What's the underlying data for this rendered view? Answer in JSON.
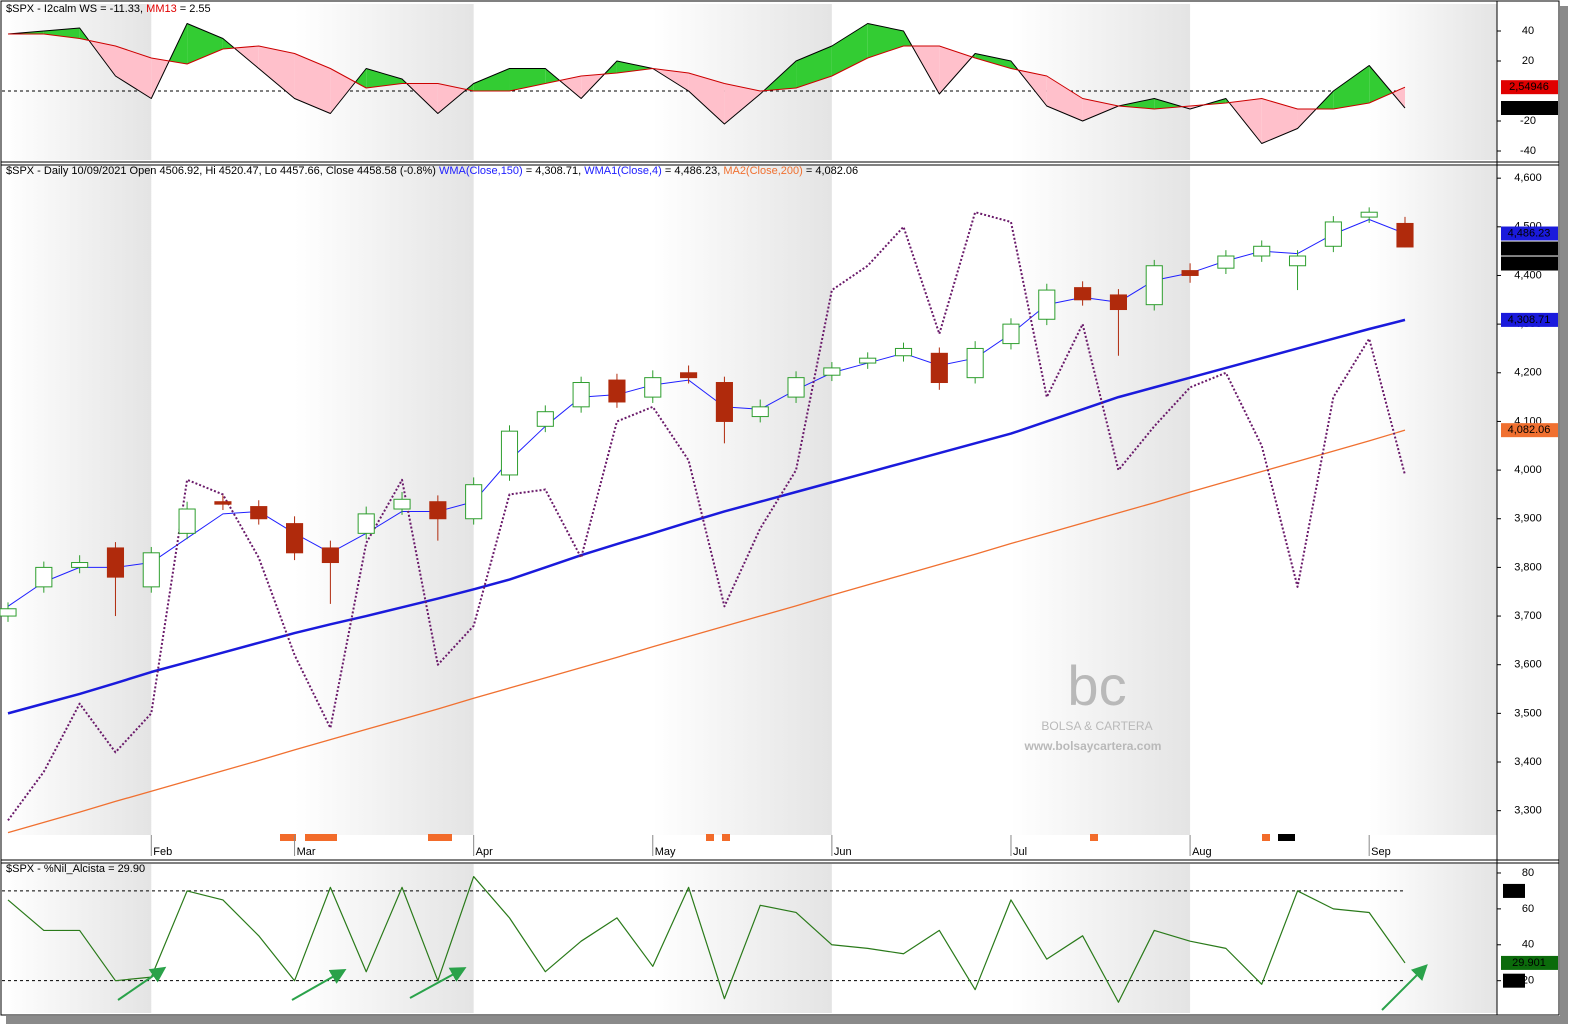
{
  "chart_data": [
    {
      "type": "oscillator",
      "title": "$SPX -",
      "ylim": [
        -46,
        58
      ],
      "yticks": [
        -40,
        -20,
        20,
        40
      ],
      "ref_lines": [
        0
      ],
      "ref_boxes": false,
      "fill_up": "#33cc33",
      "fill_down": "#ffc0cb",
      "series": [
        {
          "name": "I2calm WS",
          "label": "= -11.33,",
          "color": "#000000",
          "name_color": "#000000",
          "values": [
            38,
            40,
            42,
            10,
            -5,
            45,
            35,
            15,
            -5,
            -15,
            15,
            8,
            -15,
            5,
            15,
            15,
            -5,
            20,
            15,
            0,
            -22,
            -2,
            20,
            30,
            45,
            40,
            -2,
            25,
            20,
            -10,
            -20,
            -10,
            -5,
            -12,
            -5,
            -35,
            -25,
            0,
            17,
            -11.33
          ]
        },
        {
          "name": "MM13",
          "label": "= 2.55",
          "color": "#cc0000",
          "name_color": "#e00000",
          "values": [
            38,
            38,
            35,
            30,
            22,
            18,
            28,
            30,
            25,
            15,
            2,
            5,
            5,
            0,
            0,
            5,
            10,
            12,
            15,
            12,
            5,
            0,
            2,
            10,
            22,
            30,
            30,
            22,
            15,
            10,
            -5,
            -10,
            -12,
            -10,
            -8,
            -5,
            -12,
            -12,
            -8,
            2.55
          ]
        }
      ],
      "end_labels": [
        {
          "value": 2.54946,
          "label": "2,54946",
          "color": "#e00000"
        },
        {
          "value": -11.3316,
          "label": "-11,3316",
          "color": "#000000"
        }
      ]
    },
    {
      "type": "candlestick",
      "title": "$SPX - Daily 10/09/2021 Open 4506.92, Hi 4520.47, Lo 4457.66, Close 4458.58 (-0.8%)",
      "categories": [
        null,
        null,
        null,
        null,
        "Feb",
        null,
        null,
        null,
        "Mar",
        null,
        null,
        null,
        null,
        "Apr",
        null,
        null,
        null,
        null,
        "May",
        null,
        null,
        null,
        null,
        "Jun",
        null,
        null,
        null,
        null,
        "Jul",
        null,
        null,
        null,
        null,
        "Aug",
        null,
        null,
        null,
        null,
        "Sep",
        null
      ],
      "ylim": [
        3250,
        4625
      ],
      "yticks": [
        {
          "value": 3300,
          "label": "3,300"
        },
        {
          "value": 3400,
          "label": "3,400"
        },
        {
          "value": 3500,
          "label": "3,500"
        },
        {
          "value": 3600,
          "label": "3,600"
        },
        {
          "value": 3700,
          "label": "3,700"
        },
        {
          "value": 3800,
          "label": "3,800"
        },
        {
          "value": 3900,
          "label": "3,900"
        },
        {
          "value": 4000,
          "label": "4,000"
        },
        {
          "value": 4100,
          "label": "4,100"
        },
        {
          "value": 4200,
          "label": "4,200"
        },
        {
          "value": 4300,
          "label": "4,300"
        },
        {
          "value": 4400,
          "label": "4,400"
        },
        {
          "value": 4500,
          "label": "4,500"
        },
        {
          "value": 4600,
          "label": "4,600"
        }
      ],
      "up_color": "#2e9e2e",
      "down_color": "#b02a0c",
      "open": [
        3700,
        3760,
        3800,
        3840,
        3760,
        3870,
        3935,
        3925,
        3890,
        3840,
        3870,
        3920,
        3935,
        3900,
        3990,
        4090,
        4130,
        4185,
        4150,
        4200,
        4180,
        4110,
        4150,
        4195,
        4220,
        4235,
        4240,
        4190,
        4260,
        4310,
        4375,
        4360,
        4340,
        4410,
        4415,
        4440,
        4420,
        4460,
        4520,
        4506.92
      ],
      "high": [
        3728,
        3812,
        3825,
        3852,
        3842,
        3935,
        3948,
        3938,
        3905,
        3855,
        3925,
        3955,
        3948,
        3985,
        4092,
        4133,
        4192,
        4198,
        4205,
        4215,
        4192,
        4145,
        4203,
        4222,
        4242,
        4262,
        4252,
        4265,
        4312,
        4383,
        4388,
        4372,
        4432,
        4425,
        4452,
        4472,
        4452,
        4522,
        4540,
        4520.47
      ],
      "low": [
        3688,
        3748,
        3788,
        3700,
        3748,
        3858,
        3918,
        3888,
        3815,
        3725,
        3858,
        3908,
        3855,
        3888,
        3978,
        4078,
        4118,
        4128,
        4138,
        4178,
        4055,
        4098,
        4138,
        4183,
        4208,
        4223,
        4165,
        4178,
        4248,
        4298,
        4338,
        4235,
        4328,
        4385,
        4403,
        4428,
        4370,
        4448,
        4508,
        4457.66
      ],
      "close": [
        3715,
        3800,
        3810,
        3780,
        3830,
        3920,
        3930,
        3900,
        3830,
        3810,
        3910,
        3940,
        3900,
        3970,
        4080,
        4120,
        4180,
        4140,
        4190,
        4190,
        4100,
        4130,
        4190,
        4210,
        4230,
        4250,
        4180,
        4250,
        4300,
        4370,
        4350,
        4330,
        4420,
        4400,
        4440,
        4460,
        4440,
        4510,
        4530,
        4458.58
      ],
      "series": [
        {
          "name": "WMA(Close,150)",
          "label": "= 4,308.71,",
          "color": "#1a1adc",
          "name_color": "#2020ff",
          "width": 2.5,
          "dotted": false,
          "values": [
            3500,
            3520,
            3540,
            3562,
            3585,
            3605,
            3625,
            3645,
            3665,
            3683,
            3700,
            3718,
            3736,
            3755,
            3775,
            3800,
            3825,
            3848,
            3870,
            3893,
            3915,
            3935,
            3955,
            3975,
            3995,
            4015,
            4035,
            4055,
            4075,
            4100,
            4125,
            4150,
            4170,
            4190,
            4210,
            4230,
            4250,
            4270,
            4290,
            4308.71
          ]
        },
        {
          "name": "WMA1(Close,4)",
          "label": "= 4,486.23,",
          "color": "#2020ff",
          "name_color": "#2020ff",
          "width": 1,
          "dotted": false,
          "values": [
            3720,
            3770,
            3800,
            3800,
            3810,
            3860,
            3910,
            3915,
            3870,
            3830,
            3870,
            3915,
            3915,
            3935,
            4020,
            4090,
            4150,
            4155,
            4175,
            4185,
            4130,
            4125,
            4165,
            4200,
            4220,
            4240,
            4215,
            4230,
            4280,
            4340,
            4355,
            4345,
            4390,
            4405,
            4430,
            4450,
            4445,
            4485,
            4515,
            4486.23
          ]
        },
        {
          "name": "MA2(Close,200)",
          "label": "= 4,082.06",
          "color": "#f07030",
          "name_color": "#f07030",
          "width": 1.3,
          "dotted": false,
          "values": [
            3255,
            3276,
            3297,
            3319,
            3340,
            3361,
            3382,
            3403,
            3425,
            3446,
            3467,
            3488,
            3509,
            3531,
            3552,
            3573,
            3594,
            3615,
            3637,
            3658,
            3679,
            3700,
            3721,
            3743,
            3764,
            3785,
            3806,
            3827,
            3849,
            3870,
            3891,
            3912,
            3933,
            3955,
            3976,
            3997,
            4018,
            4039,
            4060,
            4082.06
          ]
        },
        {
          "color": "#6a1a6a",
          "width": 2,
          "dotted": true,
          "values": [
            3280,
            3380,
            3520,
            3420,
            3500,
            3980,
            3950,
            3820,
            3620,
            3470,
            3850,
            3980,
            3600,
            3680,
            3950,
            3960,
            3820,
            4100,
            4130,
            4020,
            3720,
            3880,
            4000,
            4370,
            4420,
            4500,
            4280,
            4530,
            4510,
            4150,
            4300,
            4000,
            4090,
            4170,
            4200,
            4050,
            3760,
            4150,
            4270,
            3990
          ]
        }
      ],
      "end_labels": [
        {
          "value": 4486.23,
          "label": "4,486.23",
          "color": "#1a1adc"
        },
        {
          "value": 4458.58,
          "label": "4,458.58",
          "color": "#000000"
        },
        {
          "value": 4458.58,
          "label": "4,458.58",
          "color": "#000000"
        },
        {
          "value": 4308.71,
          "label": "4,308.71",
          "color": "#1a1adc"
        },
        {
          "value": 4082.06,
          "label": "4,082.06",
          "color": "#f07030"
        }
      ],
      "watermark": {
        "logo": "bc",
        "name": "BOLSA & CARTERA",
        "url": "www.bolsaycartera.com"
      }
    },
    {
      "type": "line",
      "title": "$SPX - %Nil_Alcista = 29.90",
      "ylim": [
        2,
        85
      ],
      "yticks": [
        20,
        40,
        60,
        80
      ],
      "ref_lines": [
        70,
        20
      ],
      "ref_boxes": true,
      "series": [
        {
          "color": "#2a7a1a",
          "width": 1.2,
          "dotted": false,
          "values": [
            65,
            48,
            48,
            20,
            22,
            70,
            65,
            45,
            20,
            72,
            25,
            72,
            20,
            78,
            55,
            25,
            42,
            55,
            28,
            72,
            10,
            62,
            58,
            40,
            38,
            35,
            48,
            15,
            65,
            32,
            45,
            8,
            48,
            42,
            38,
            18,
            70,
            60,
            58,
            29.9
          ]
        }
      ],
      "end_labels": [
        {
          "value": 29.901,
          "color": "#0b6b0b"
        }
      ]
    }
  ]
}
